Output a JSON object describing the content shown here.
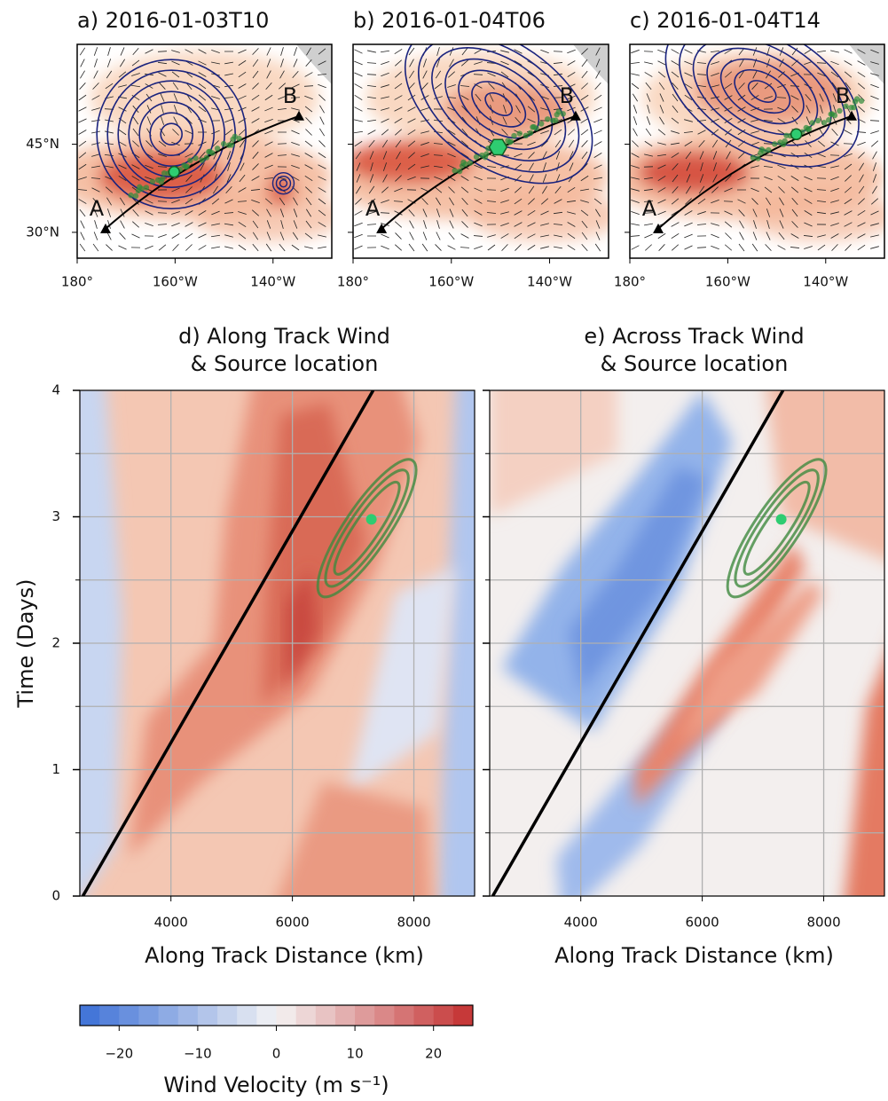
{
  "chart_data": [
    {
      "type": "map",
      "title": "a) 2016-01-03T10",
      "xlim": [
        -180,
        -128
      ],
      "ylim": [
        25.6,
        62
      ],
      "xticks": [
        {
          "value": -180,
          "label": "180°"
        },
        {
          "value": -160,
          "label": "160°W"
        },
        {
          "value": -140,
          "label": "140°W"
        }
      ],
      "yticks": [
        {
          "value": 30,
          "label": "30°N"
        },
        {
          "value": 45,
          "label": "45°N"
        }
      ],
      "ytick_labels": true,
      "track": {
        "labels": [
          "A",
          "B"
        ],
        "lon": [
          -174.2,
          -134.7
        ],
        "lat": [
          30.6,
          49.8
        ]
      },
      "source": {
        "lon": -160.2,
        "lat": 40.3,
        "marker": "circle",
        "color": "#2ecc71"
      }
    },
    {
      "type": "map",
      "title": "b) 2016-01-04T06",
      "xlim": [
        -180,
        -128
      ],
      "ylim": [
        25.6,
        62
      ],
      "xticks": [
        {
          "value": -180,
          "label": "180°"
        },
        {
          "value": -160,
          "label": "160°W"
        },
        {
          "value": -140,
          "label": "140°W"
        }
      ],
      "yticks": [
        30,
        45
      ],
      "ytick_labels": false,
      "track": {
        "labels": [
          "A",
          "B"
        ],
        "lon": [
          -174.2,
          -134.7
        ],
        "lat": [
          30.6,
          49.8
        ]
      },
      "source": {
        "lon": -150.5,
        "lat": 44.5,
        "marker": "hexagon",
        "color": "#2ecc71"
      }
    },
    {
      "type": "map",
      "title": "c) 2016-01-04T14",
      "xlim": [
        -180,
        -128
      ],
      "ylim": [
        25.6,
        62
      ],
      "xticks": [
        {
          "value": -180,
          "label": "180°"
        },
        {
          "value": -160,
          "label": "160°W"
        },
        {
          "value": -140,
          "label": "140°W"
        }
      ],
      "yticks": [
        30,
        45
      ],
      "ytick_labels": false,
      "track": {
        "labels": [
          "A",
          "B"
        ],
        "lon": [
          -174.2,
          -134.7
        ],
        "lat": [
          30.6,
          49.8
        ]
      },
      "source": {
        "lon": -146,
        "lat": 46.7,
        "marker": "circle",
        "color": "#2ecc71"
      }
    },
    {
      "type": "contour",
      "variant": "along",
      "title": [
        "d) Along Track Wind",
        "& Source location"
      ],
      "xlabel": "Along Track Distance (km)",
      "ylabel": "Time (Days)",
      "xlim": [
        2500,
        9000
      ],
      "ylim": [
        0,
        4
      ],
      "xticks": [
        4000,
        6000,
        8000
      ],
      "yticks": [
        0,
        1,
        2,
        3,
        4
      ],
      "yminor": [
        0.5,
        1.5,
        2.5,
        3.5
      ],
      "ytick_labels": true,
      "grid": true,
      "line": {
        "x": [
          2550,
          7330
        ],
        "y": [
          0,
          4
        ],
        "color": "#000000"
      },
      "source": {
        "x": 7300,
        "y": 2.98,
        "color": "#2ecc71"
      }
    },
    {
      "type": "contour",
      "variant": "across",
      "title": [
        "e) Across Track Wind",
        "& Source location"
      ],
      "xlabel": "Along Track Distance (km)",
      "xlim": [
        2500,
        9000
      ],
      "ylim": [
        0,
        4
      ],
      "xticks": [
        4000,
        6000,
        8000
      ],
      "yticks": [
        0,
        1,
        2,
        3,
        4
      ],
      "yminor": [
        0.5,
        1.5,
        2.5,
        3.5
      ],
      "ytick_labels": false,
      "grid": true,
      "line": {
        "x": [
          2550,
          7330
        ],
        "y": [
          0,
          4
        ],
        "color": "#000000"
      },
      "source": {
        "x": 7300,
        "y": 2.98,
        "color": "#2ecc71"
      }
    },
    {
      "type": "colorbar",
      "xlim": [
        -25,
        25
      ],
      "xticks": [
        {
          "value": -20,
          "label": "−20"
        },
        {
          "value": -10,
          "label": "−10"
        },
        0,
        10,
        20
      ],
      "label": "Wind Velocity (m s⁻¹)",
      "colors": [
        "#3b6fd6",
        "#f4f4f4",
        "#c42f2f"
      ]
    }
  ]
}
